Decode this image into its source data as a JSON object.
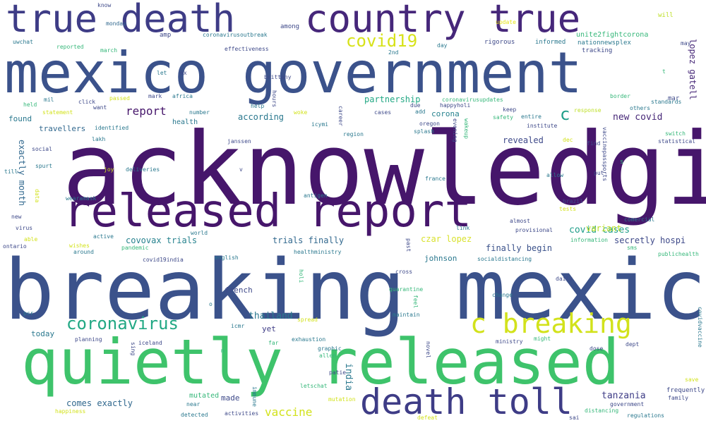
{
  "words": [
    {
      "text": "acknowledging",
      "color": "#46166b"
    },
    {
      "text": "breaking mexico",
      "color": "#3b528b"
    },
    {
      "text": "mexico government",
      "color": "#3b528b"
    },
    {
      "text": "quietly released",
      "color": "#3ec36b"
    },
    {
      "text": "released report",
      "color": "#46166b"
    },
    {
      "text": "true death",
      "color": "#3e3c86"
    },
    {
      "text": "country true",
      "color": "#46277a"
    },
    {
      "text": "death toll",
      "color": "#3e3c86"
    },
    {
      "text": "c breaking",
      "color": "#d2e21b"
    },
    {
      "text": "coronavirus",
      "color": "#22a884"
    },
    {
      "text": "covid19",
      "color": "#d7e219"
    },
    {
      "text": "vaccine",
      "color": "#d2e21b"
    },
    {
      "text": "report",
      "color": "#46166b"
    },
    {
      "text": "c",
      "color": "#1f9e89"
    },
    {
      "text": "new covid",
      "color": "#472878"
    },
    {
      "text": "covid cases",
      "color": "#1f9e89"
    },
    {
      "text": "tanzania",
      "color": "#3e3c86"
    },
    {
      "text": "india",
      "color": "#2a788e"
    },
    {
      "text": "thailand",
      "color": "#2a788e"
    },
    {
      "text": "comes exactly",
      "color": "#31688e"
    },
    {
      "text": "exactly month",
      "color": "#31688e"
    },
    {
      "text": "finally begin",
      "color": "#3b528b"
    },
    {
      "text": "secretly hospi",
      "color": "#3e4989"
    },
    {
      "text": "trials finally",
      "color": "#31688e"
    },
    {
      "text": "covovax trials",
      "color": "#26828e"
    },
    {
      "text": "czar lopez",
      "color": "#d9e22f"
    },
    {
      "text": "partnership",
      "color": "#22a884"
    },
    {
      "text": "lopez gatell",
      "color": "#472878"
    },
    {
      "text": "variant",
      "color": "#bddf26"
    },
    {
      "text": "revealed",
      "color": "#3e4989"
    },
    {
      "text": "according",
      "color": "#2a788e"
    },
    {
      "text": "travellers",
      "color": "#31688e"
    },
    {
      "text": "found",
      "color": "#2a788e"
    },
    {
      "text": "made",
      "color": "#3e4989"
    },
    {
      "text": "today",
      "color": "#2a788e"
    },
    {
      "text": "corona",
      "color": "#26828e"
    },
    {
      "text": "yet",
      "color": "#3e3c86"
    },
    {
      "text": "french",
      "color": "#3e4989"
    },
    {
      "text": "johnson",
      "color": "#2a788e"
    },
    {
      "text": "unite2fightcorona",
      "color": "#35b779"
    },
    {
      "text": "nationnewsplex",
      "color": "#2a788e"
    },
    {
      "text": "mutated",
      "color": "#35b779"
    },
    {
      "text": "health",
      "color": "#2a788e"
    },
    {
      "text": "tracking",
      "color": "#3e4989"
    },
    {
      "text": "rigorous",
      "color": "#3e4989"
    },
    {
      "text": "informed",
      "color": "#2a788e"
    },
    {
      "text": "update",
      "color": "#e5e419"
    },
    {
      "text": "will",
      "color": "#bddf26"
    },
    {
      "text": "may",
      "color": "#3e4989"
    },
    {
      "text": "t",
      "color": "#35b779"
    },
    {
      "text": "mar",
      "color": "#3e4989"
    },
    {
      "text": "know",
      "color": "#3e4989"
    },
    {
      "text": "monday",
      "color": "#31688e"
    },
    {
      "text": "amp",
      "color": "#3e4989"
    },
    {
      "text": "coronavirusoutbreak",
      "color": "#2a788e"
    },
    {
      "text": "among",
      "color": "#3e4989"
    },
    {
      "text": "uwchat",
      "color": "#2a788e"
    },
    {
      "text": "reported",
      "color": "#35b779"
    },
    {
      "text": "effectiveness",
      "color": "#3e4989"
    },
    {
      "text": "march",
      "color": "#35b779"
    },
    {
      "text": "2nd",
      "color": "#2a788e"
    },
    {
      "text": "day",
      "color": "#2a788e"
    },
    {
      "text": "let",
      "color": "#2a788e"
    },
    {
      "text": "ex",
      "color": "#3e4989"
    },
    {
      "text": "brittany",
      "color": "#3e4989"
    },
    {
      "text": "mil",
      "color": "#2a788e"
    },
    {
      "text": "passed",
      "color": "#d2e21b"
    },
    {
      "text": "mark",
      "color": "#3e4989"
    },
    {
      "text": "africa",
      "color": "#2a788e"
    },
    {
      "text": "held",
      "color": "#35b779"
    },
    {
      "text": "click",
      "color": "#3e4989"
    },
    {
      "text": "want",
      "color": "#3e4989"
    },
    {
      "text": "statement",
      "color": "#d2e21b"
    },
    {
      "text": "number",
      "color": "#2a788e"
    },
    {
      "text": "help",
      "color": "#2a788e"
    },
    {
      "text": "hours",
      "color": "#3e4989"
    },
    {
      "text": "woke",
      "color": "#d2e21b"
    },
    {
      "text": "icymi",
      "color": "#2a788e"
    },
    {
      "text": "cases",
      "color": "#3e4989"
    },
    {
      "text": "due",
      "color": "#3e4989"
    },
    {
      "text": "add",
      "color": "#2a788e"
    },
    {
      "text": "career",
      "color": "#3e4989"
    },
    {
      "text": "coronavirusupdates",
      "color": "#35b779"
    },
    {
      "text": "happyholi",
      "color": "#3e4989"
    },
    {
      "text": "oregon",
      "color": "#3e4989"
    },
    {
      "text": "splash",
      "color": "#2a788e"
    },
    {
      "text": "evening",
      "color": "#3e4989"
    },
    {
      "text": "wakeup",
      "color": "#35b779"
    },
    {
      "text": "keep",
      "color": "#3e4989"
    },
    {
      "text": "safety",
      "color": "#35b779"
    },
    {
      "text": "entire",
      "color": "#2a788e"
    },
    {
      "text": "institute",
      "color": "#3e4989"
    },
    {
      "text": "response",
      "color": "#bddf26"
    },
    {
      "text": "border",
      "color": "#35b779"
    },
    {
      "text": "standards",
      "color": "#2a788e"
    },
    {
      "text": "others",
      "color": "#2a788e"
    },
    {
      "text": "vaccinepassports",
      "color": "#3e4989"
    },
    {
      "text": "switch",
      "color": "#35b779"
    },
    {
      "text": "statistical",
      "color": "#3e4989"
    },
    {
      "text": "dec",
      "color": "#d2e21b"
    },
    {
      "text": "find",
      "color": "#3e4989"
    },
    {
      "text": "identified",
      "color": "#2a788e"
    },
    {
      "text": "lakh",
      "color": "#2a788e"
    },
    {
      "text": "social",
      "color": "#3e4989"
    },
    {
      "text": "region",
      "color": "#2a788e"
    },
    {
      "text": "janssen",
      "color": "#3e4989"
    },
    {
      "text": "spurt",
      "color": "#2a788e"
    },
    {
      "text": "joy",
      "color": "#d2e21b"
    },
    {
      "text": "deliveries",
      "color": "#2a788e"
    },
    {
      "text": "till",
      "color": "#2a788e"
    },
    {
      "text": "v",
      "color": "#3e4989"
    },
    {
      "text": "s",
      "color": "#35b779"
    },
    {
      "text": "allow",
      "color": "#2a788e"
    },
    {
      "text": "put",
      "color": "#3e4989"
    },
    {
      "text": "data",
      "color": "#d2e21b"
    },
    {
      "text": "wearamask",
      "color": "#2a788e"
    },
    {
      "text": "france",
      "color": "#2a788e"
    },
    {
      "text": "antigen",
      "color": "#2a788e"
    },
    {
      "text": "brazil",
      "color": "#3e4989"
    },
    {
      "text": "tests",
      "color": "#d2e21b"
    },
    {
      "text": "comercial",
      "color": "#2a788e"
    },
    {
      "text": "new",
      "color": "#3e4989"
    },
    {
      "text": "almost",
      "color": "#3e4989"
    },
    {
      "text": "link",
      "color": "#2a788e"
    },
    {
      "text": "provisional",
      "color": "#3e4989"
    },
    {
      "text": "virus",
      "color": "#3e4989"
    },
    {
      "text": "world",
      "color": "#2a788e"
    },
    {
      "text": "able",
      "color": "#d2e21b"
    },
    {
      "text": "active",
      "color": "#2a788e"
    },
    {
      "text": "information",
      "color": "#35b779"
    },
    {
      "text": "ontario",
      "color": "#3e4989"
    },
    {
      "text": "wishes",
      "color": "#d2e21b"
    },
    {
      "text": "pandemic",
      "color": "#35b779"
    },
    {
      "text": "past",
      "color": "#3e4989"
    },
    {
      "text": "sms",
      "color": "#35b779"
    },
    {
      "text": "publichealth",
      "color": "#35b779"
    },
    {
      "text": "around",
      "color": "#2a788e"
    },
    {
      "text": "healthministry",
      "color": "#2a788e"
    },
    {
      "text": "covid19india",
      "color": "#3e4989"
    },
    {
      "text": "english",
      "color": "#2a788e"
    },
    {
      "text": "socialdistancing",
      "color": "#2a788e"
    },
    {
      "text": "cross",
      "color": "#3e4989"
    },
    {
      "text": "daily",
      "color": "#3e4989"
    },
    {
      "text": "holi",
      "color": "#35b779"
    },
    {
      "text": "quarantine",
      "color": "#35b779"
    },
    {
      "text": "change",
      "color": "#2a788e"
    },
    {
      "text": "o",
      "color": "#2a788e"
    },
    {
      "text": "feel",
      "color": "#35b779"
    },
    {
      "text": "maintain",
      "color": "#2a788e"
    },
    {
      "text": "pcr",
      "color": "#2a788e"
    },
    {
      "text": "covidvaccine",
      "color": "#2a788e"
    },
    {
      "text": "spread",
      "color": "#d2e21b"
    },
    {
      "text": "icmr",
      "color": "#2a788e"
    },
    {
      "text": "planning",
      "color": "#3e4989"
    },
    {
      "text": "iceland",
      "color": "#3e4989"
    },
    {
      "text": "sing",
      "color": "#3e4989"
    },
    {
      "text": "exhaustion",
      "color": "#2a788e"
    },
    {
      "text": "far",
      "color": "#35b779"
    },
    {
      "text": "ministry",
      "color": "#3e4989"
    },
    {
      "text": "might",
      "color": "#35b779"
    },
    {
      "text": "m",
      "color": "#35b779"
    },
    {
      "text": "graphic",
      "color": "#2a788e"
    },
    {
      "text": "allen",
      "color": "#35b779"
    },
    {
      "text": "novel",
      "color": "#3e4989"
    },
    {
      "text": "dose",
      "color": "#3e4989"
    },
    {
      "text": "dept",
      "color": "#3e4989"
    },
    {
      "text": "patie",
      "color": "#3e4989"
    },
    {
      "text": "save",
      "color": "#d2e21b"
    },
    {
      "text": "frequently",
      "color": "#3e4989"
    },
    {
      "text": "family",
      "color": "#3e4989"
    },
    {
      "text": "letschat",
      "color": "#35b779"
    },
    {
      "text": "immune",
      "color": "#2a788e"
    },
    {
      "text": "mutation",
      "color": "#d2e21b"
    },
    {
      "text": "government",
      "color": "#3e4989"
    },
    {
      "text": "distancing",
      "color": "#35b779"
    },
    {
      "text": "near",
      "color": "#2a788e"
    },
    {
      "text": "happiness",
      "color": "#d2e21b"
    },
    {
      "text": "detected",
      "color": "#2a788e"
    },
    {
      "text": "activities",
      "color": "#3e4989"
    },
    {
      "text": "defeat",
      "color": "#d2e21b"
    },
    {
      "text": "sai",
      "color": "#3e4989"
    },
    {
      "text": "regulations",
      "color": "#2a788e"
    }
  ]
}
